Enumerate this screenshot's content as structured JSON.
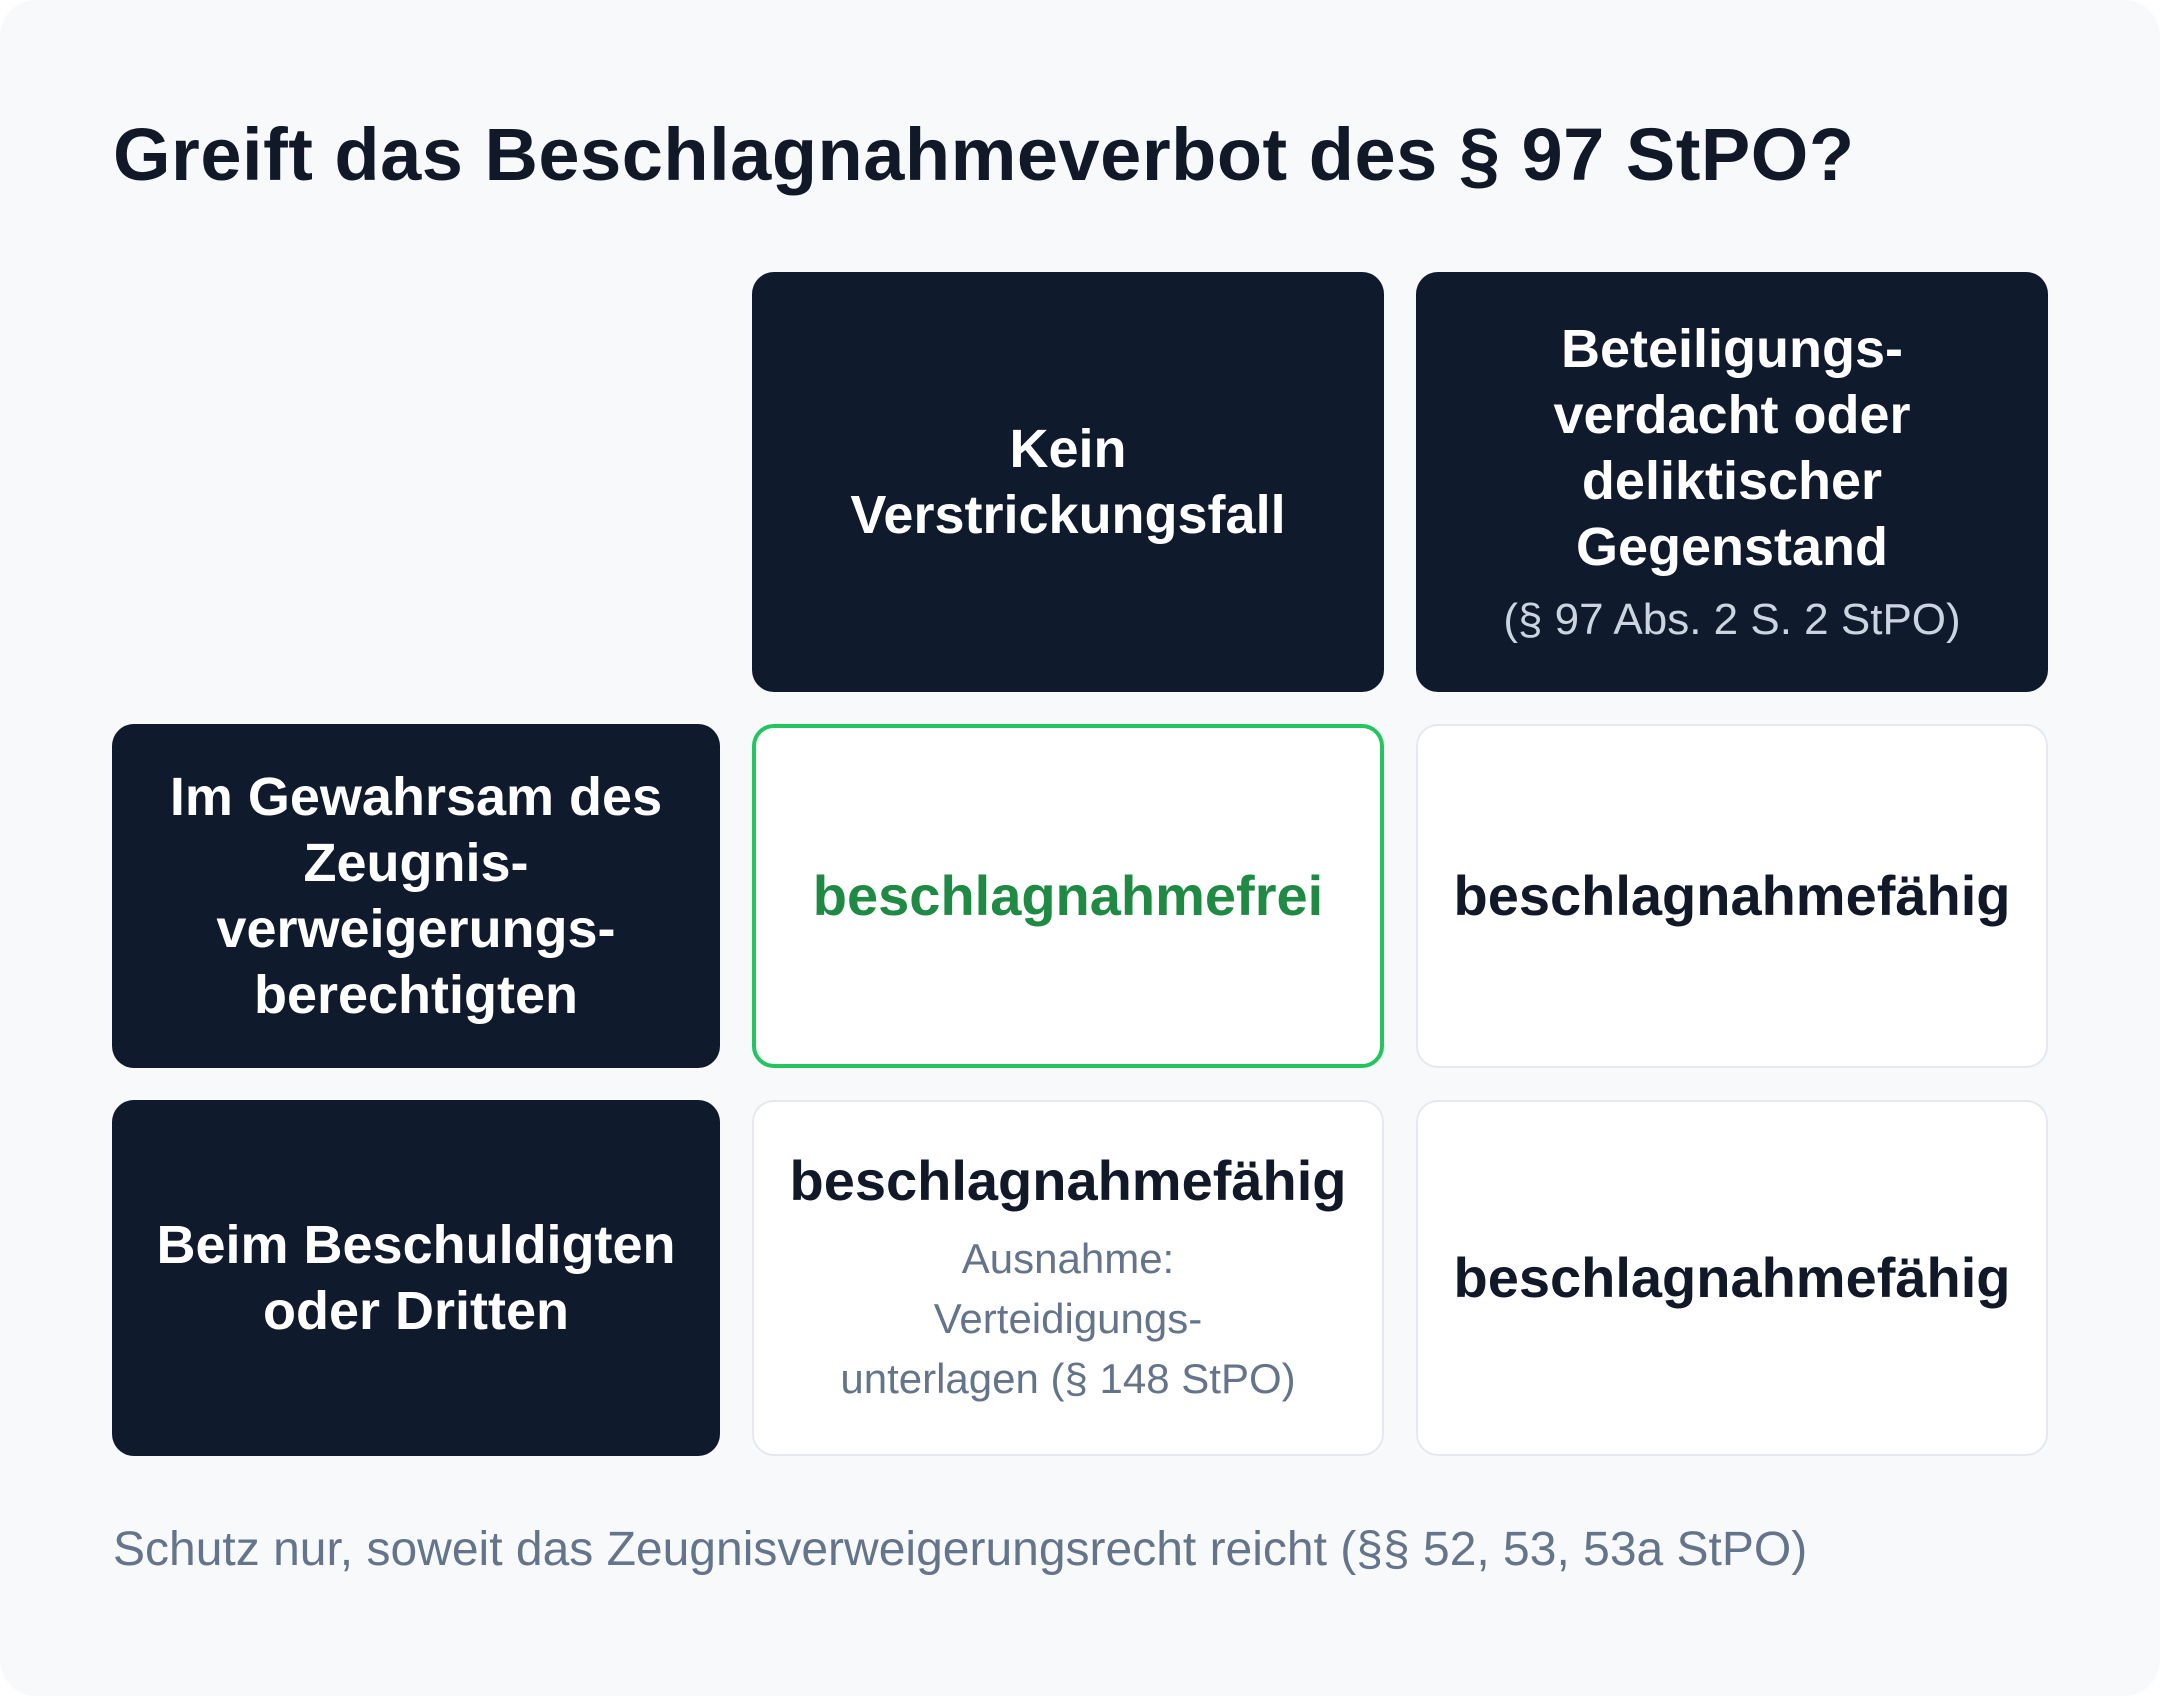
{
  "title": "Greift das Beschlagnahmeverbot des § 97 StPO?",
  "columns": [
    {
      "lines": [
        "Kein",
        "Verstrickungsfall"
      ],
      "sub": ""
    },
    {
      "lines": [
        "Beteiligungs-",
        "verdacht oder",
        "deliktischer",
        "Gegenstand"
      ],
      "sub": "(§ 97 Abs. 2 S. 2 StPO)"
    }
  ],
  "rows": [
    {
      "lines": [
        "Im Gewahrsam des",
        "Zeugnis-",
        "verweigerungs-",
        "berechtigten"
      ]
    },
    {
      "lines": [
        "Beim Beschuldigten",
        "oder Dritten"
      ]
    }
  ],
  "cells": {
    "r1c1": {
      "value": "beschlagnahmefrei",
      "color": "#1f8a43",
      "border": "#22c55e"
    },
    "r1c2": {
      "value": "beschlagnahmefähig"
    },
    "r2c1": {
      "value": "beschlagnahmefähig",
      "note_lines": [
        "Ausnahme:",
        "Verteidigungs-",
        "unterlagen (§ 148 StPO)"
      ]
    },
    "r2c2": {
      "value": "beschlagnahmefähig"
    }
  },
  "footer": "Schutz nur, soweit das Zeugnisverweigerungsrecht reicht (§§ 52, 53, 53a StPO)"
}
